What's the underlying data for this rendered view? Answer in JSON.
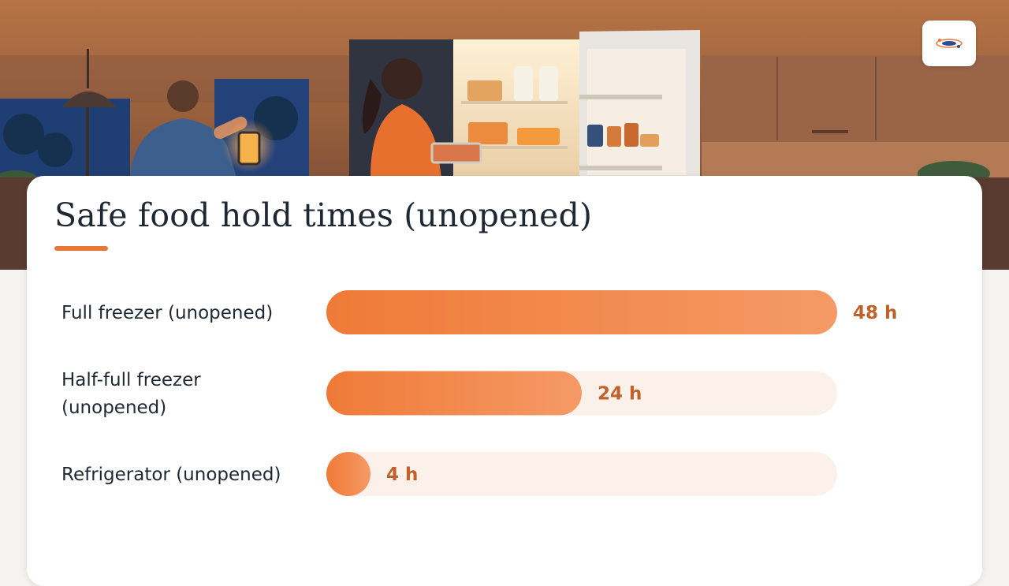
{
  "logo": {
    "icon": "brand-logo-icon"
  },
  "title": "Safe food hold times (unopened)",
  "colors": {
    "accent": "#e9773a",
    "bar_start": "#ef7a37",
    "bar_end": "#f59a66",
    "track": "#fbf1ea",
    "value_text": "#c0612a",
    "title_text": "#1f2733"
  },
  "chart_data": {
    "type": "bar",
    "orientation": "horizontal",
    "title": "Safe food hold times (unopened)",
    "categories": [
      [
        "Full freezer (unopened)"
      ],
      [
        "Half-full freezer",
        "(unopened)"
      ],
      [
        "Refrigerator (unopened)"
      ]
    ],
    "values": [
      48,
      24,
      4
    ],
    "value_labels": [
      "48 h",
      "24 h",
      "4 h"
    ],
    "unit": "h",
    "xlim": [
      0,
      48
    ],
    "grid": false,
    "legend": "none"
  }
}
